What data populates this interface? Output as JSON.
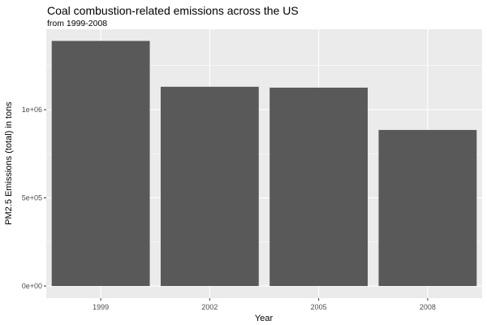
{
  "chart_data": {
    "type": "bar",
    "title": "Coal combustion-related emissions across the US",
    "subtitle": "from 1999-2008",
    "xlabel": "Year",
    "ylabel": "PM2.5 Emissions (total) in tons",
    "categories": [
      "1999",
      "2002",
      "2005",
      "2008"
    ],
    "values": [
      1390000,
      1130000,
      1125000,
      885000
    ],
    "ylim": [
      0,
      1450000
    ],
    "y_ticks": [
      0,
      500000,
      1000000
    ],
    "y_tick_labels": [
      "0e+00",
      "5e+05",
      "1e+06"
    ],
    "grid": true,
    "colors": {
      "bar": "#595959",
      "panel": "#ebebeb",
      "grid": "#ffffff"
    }
  }
}
